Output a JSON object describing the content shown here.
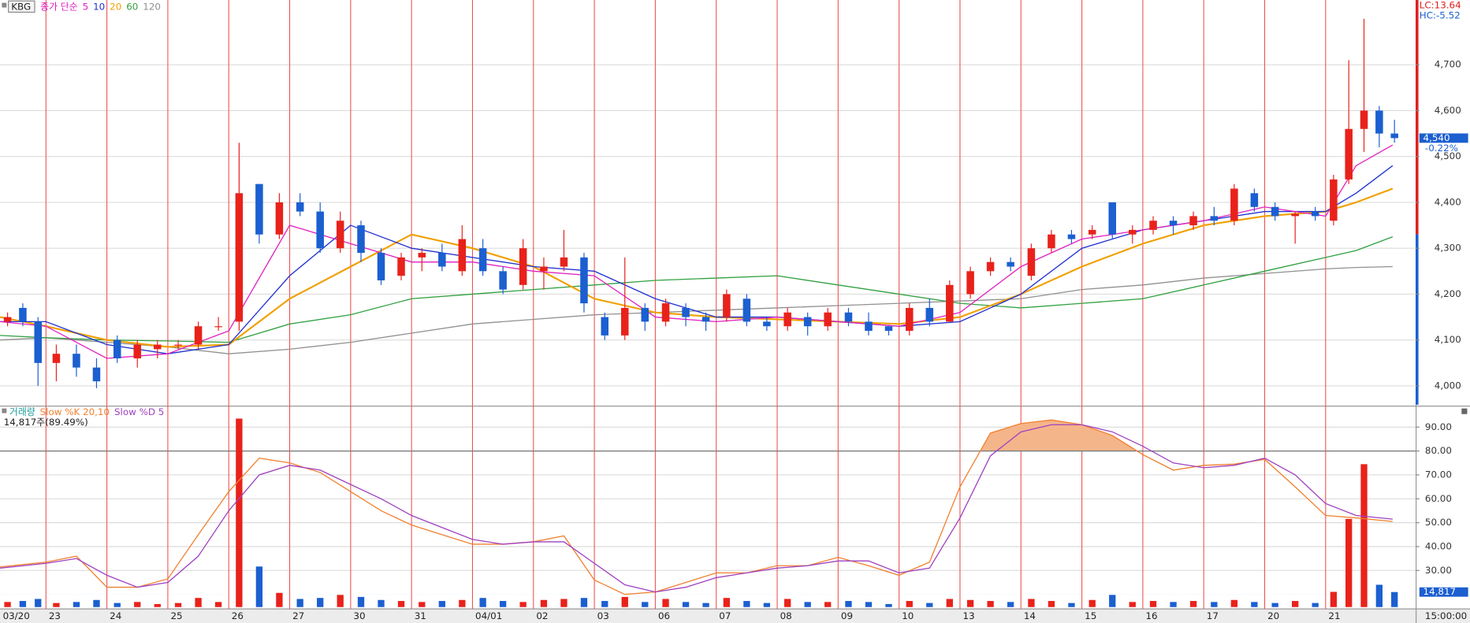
{
  "chart_data": {
    "type": "candlestick",
    "symbol": "KBG",
    "ma_label": "종가 단순",
    "xlim": [
      -0.754,
      22.477
    ],
    "xticks": [
      {
        "value": -0.754,
        "label": "03/20"
      },
      {
        "value": 0,
        "label": "23"
      },
      {
        "value": 1,
        "label": "24"
      },
      {
        "value": 2,
        "label": "25"
      },
      {
        "value": 3,
        "label": "26"
      },
      {
        "value": 4,
        "label": "27"
      },
      {
        "value": 5,
        "label": "30"
      },
      {
        "value": 6,
        "label": "31"
      },
      {
        "value": 7,
        "label": "04/01"
      },
      {
        "value": 8,
        "label": "02"
      },
      {
        "value": 9,
        "label": "03"
      },
      {
        "value": 10,
        "label": "06"
      },
      {
        "value": 11,
        "label": "07"
      },
      {
        "value": 12,
        "label": "08"
      },
      {
        "value": 13,
        "label": "09"
      },
      {
        "value": 14,
        "label": "10"
      },
      {
        "value": 15,
        "label": "13"
      },
      {
        "value": 16,
        "label": "14"
      },
      {
        "value": 17,
        "label": "15"
      },
      {
        "value": 18,
        "label": "16"
      },
      {
        "value": 19,
        "label": "17"
      },
      {
        "value": 20,
        "label": "20"
      },
      {
        "value": 21,
        "label": "21"
      }
    ],
    "time_label": "15:00:00",
    "ylim": [
      3959,
      4841
    ],
    "yticks": [
      {
        "value": 4700,
        "label": "4,700"
      },
      {
        "value": 4600,
        "label": "4,600"
      },
      {
        "value": 4500,
        "label": "4,500"
      },
      {
        "value": 4400,
        "label": "4,400"
      },
      {
        "value": 4300,
        "label": "4,300"
      },
      {
        "value": 4200,
        "label": "4,200"
      },
      {
        "value": 4100,
        "label": "4,100"
      },
      {
        "value": 4000,
        "label": "4,000"
      }
    ],
    "grid": true,
    "up_color": "#e8221b",
    "down_color": "#1b5fd0",
    "candles": {
      "x": [
        -0.63,
        -0.38,
        -0.13,
        0.17,
        0.5,
        0.83,
        1.17,
        1.5,
        1.83,
        2.17,
        2.5,
        2.83,
        3.17,
        3.5,
        3.83,
        4.17,
        4.5,
        4.83,
        5.17,
        5.5,
        5.83,
        6.17,
        6.5,
        6.83,
        7.17,
        7.5,
        7.83,
        8.17,
        8.5,
        8.83,
        9.17,
        9.5,
        9.83,
        10.17,
        10.5,
        10.83,
        11.17,
        11.5,
        11.83,
        12.17,
        12.5,
        12.83,
        13.17,
        13.5,
        13.83,
        14.17,
        14.5,
        14.83,
        15.17,
        15.5,
        15.83,
        16.17,
        16.5,
        16.83,
        17.17,
        17.5,
        17.83,
        18.17,
        18.5,
        18.83,
        19.17,
        19.5,
        19.83,
        20.17,
        20.5,
        20.83,
        21.13,
        21.38,
        21.63,
        21.88,
        22.13
      ],
      "open": [
        4140,
        4170,
        4140,
        4050,
        4070,
        4040,
        4100,
        4060,
        4080,
        4090,
        4090,
        4130,
        4140,
        4440,
        4330,
        4400,
        4380,
        4300,
        4350,
        4290,
        4240,
        4280,
        4290,
        4250,
        4300,
        4250,
        4220,
        4250,
        4260,
        4280,
        4150,
        4110,
        4170,
        4140,
        4170,
        4150,
        4150,
        4190,
        4140,
        4130,
        4150,
        4130,
        4160,
        4140,
        4130,
        4120,
        4170,
        4140,
        4200,
        4250,
        4270,
        4240,
        4300,
        4330,
        4330,
        4400,
        4330,
        4340,
        4360,
        4350,
        4370,
        4360,
        4420,
        4390,
        4370,
        4380,
        4360,
        4450,
        4560,
        4600,
        4550
      ],
      "high": [
        4160,
        4180,
        4150,
        4090,
        4090,
        4060,
        4110,
        4100,
        4100,
        4100,
        4140,
        4150,
        4530,
        4440,
        4420,
        4420,
        4400,
        4380,
        4360,
        4300,
        4290,
        4300,
        4310,
        4350,
        4320,
        4260,
        4320,
        4280,
        4340,
        4290,
        4160,
        4280,
        4180,
        4190,
        4180,
        4160,
        4210,
        4200,
        4150,
        4170,
        4160,
        4170,
        4170,
        4160,
        4130,
        4180,
        4190,
        4230,
        4260,
        4280,
        4280,
        4310,
        4340,
        4340,
        4350,
        4400,
        4350,
        4370,
        4370,
        4380,
        4390,
        4440,
        4430,
        4400,
        4380,
        4390,
        4460,
        4710,
        4800,
        4610,
        4580
      ],
      "low": [
        4130,
        4130,
        4000,
        4010,
        4020,
        3995,
        4050,
        4040,
        4060,
        4080,
        4080,
        4120,
        4120,
        4310,
        4320,
        4370,
        4290,
        4290,
        4270,
        4220,
        4230,
        4250,
        4250,
        4240,
        4240,
        4200,
        4210,
        4210,
        4250,
        4160,
        4100,
        4100,
        4120,
        4130,
        4130,
        4120,
        4140,
        4130,
        4120,
        4120,
        4110,
        4120,
        4130,
        4110,
        4110,
        4110,
        4130,
        4140,
        4190,
        4240,
        4250,
        4230,
        4290,
        4310,
        4320,
        4320,
        4310,
        4330,
        4330,
        4340,
        4350,
        4350,
        4380,
        4360,
        4310,
        4360,
        4350,
        4440,
        4510,
        4520,
        4530
      ],
      "close": [
        4150,
        4140,
        4050,
        4070,
        4040,
        4010,
        4060,
        4090,
        4090,
        4090,
        4130,
        4130,
        4420,
        4330,
        4400,
        4380,
        4300,
        4360,
        4290,
        4230,
        4280,
        4290,
        4260,
        4320,
        4250,
        4210,
        4300,
        4260,
        4280,
        4180,
        4110,
        4170,
        4140,
        4180,
        4150,
        4140,
        4200,
        4140,
        4130,
        4160,
        4130,
        4160,
        4140,
        4120,
        4120,
        4170,
        4140,
        4220,
        4250,
        4270,
        4260,
        4300,
        4330,
        4320,
        4340,
        4330,
        4340,
        4360,
        4350,
        4370,
        4360,
        4430,
        4390,
        4370,
        4375,
        4370,
        4450,
        4560,
        4600,
        4550,
        4540
      ]
    },
    "ma_series": [
      {
        "name": "5",
        "color": "#e020c0",
        "x": [
          -0.754,
          0,
          1,
          2,
          3,
          4,
          5,
          6,
          7,
          8,
          9,
          10,
          11,
          12,
          13,
          14,
          15,
          16,
          17,
          18,
          19,
          20,
          21,
          21.5,
          22.1
        ],
        "values": [
          4140,
          4130,
          4060,
          4070,
          4120,
          4350,
          4310,
          4270,
          4270,
          4250,
          4240,
          4150,
          4140,
          4150,
          4140,
          4130,
          4160,
          4260,
          4320,
          4340,
          4360,
          4390,
          4370,
          4480,
          4525
        ]
      },
      {
        "name": "10",
        "color": "#2030d0",
        "x": [
          -0.754,
          0,
          1,
          2,
          3,
          4,
          5,
          6,
          7,
          8,
          9,
          10,
          11,
          12,
          13,
          14,
          15,
          16,
          17,
          18,
          19,
          20,
          21,
          21.5,
          22.1
        ],
        "values": [
          4140,
          4140,
          4090,
          4070,
          4090,
          4240,
          4350,
          4300,
          4280,
          4260,
          4250,
          4190,
          4150,
          4150,
          4140,
          4130,
          4140,
          4200,
          4300,
          4340,
          4360,
          4380,
          4380,
          4420,
          4480
        ]
      },
      {
        "name": "20",
        "color": "#f0a000",
        "x": [
          -0.754,
          0,
          1,
          2,
          3,
          4,
          5,
          6,
          7,
          8,
          9,
          10,
          11,
          12,
          13,
          14,
          15,
          16,
          17,
          18,
          19,
          20,
          21,
          21.5,
          22.1
        ],
        "values": [
          4150,
          4130,
          4100,
          4085,
          4090,
          4190,
          4260,
          4330,
          4300,
          4260,
          4190,
          4160,
          4150,
          4145,
          4140,
          4135,
          4150,
          4200,
          4260,
          4310,
          4350,
          4370,
          4380,
          4400,
          4430
        ]
      },
      {
        "name": "60",
        "color": "#30a040",
        "x": [
          -0.754,
          0,
          1,
          2,
          3,
          4,
          5,
          6,
          7,
          8,
          9,
          10,
          11,
          12,
          13,
          14,
          15,
          16,
          17,
          18,
          19,
          20,
          21,
          21.5,
          22.1
        ],
        "values": [
          4110,
          4105,
          4100,
          4098,
          4095,
          4135,
          4155,
          4190,
          4200,
          4210,
          4220,
          4230,
          4235,
          4240,
          4220,
          4200,
          4180,
          4170,
          4180,
          4190,
          4220,
          4250,
          4280,
          4295,
          4325
        ]
      },
      {
        "name": "120",
        "color": "#909090",
        "x": [
          -0.754,
          0,
          1,
          2,
          3,
          4,
          5,
          6,
          7,
          8,
          9,
          10,
          11,
          12,
          13,
          14,
          15,
          16,
          17,
          18,
          19,
          20,
          21,
          21.5,
          22.1
        ],
        "values": [
          4100,
          4105,
          4095,
          4085,
          4070,
          4080,
          4095,
          4115,
          4135,
          4145,
          4155,
          4160,
          4165,
          4170,
          4175,
          4180,
          4185,
          4190,
          4210,
          4220,
          4235,
          4245,
          4255,
          4258,
          4260
        ]
      }
    ],
    "last_price": {
      "value": 4540,
      "label": "4,540"
    },
    "change_label": "-0.22%",
    "lc_label": "LC:13.64",
    "hc_label": "HC:-5.52",
    "volume": {
      "name": "거래량",
      "color": "#1a9a9a",
      "values": [
        5000,
        6000,
        8000,
        4000,
        5000,
        7000,
        4000,
        5000,
        3000,
        4000,
        9000,
        5000,
        186000,
        40000,
        14000,
        8000,
        9000,
        12000,
        10000,
        7000,
        6000,
        5000,
        6000,
        7000,
        9000,
        6000,
        5000,
        7000,
        8000,
        9000,
        6000,
        10000,
        5000,
        8000,
        5000,
        4000,
        9000,
        6000,
        4000,
        8000,
        5000,
        5000,
        6000,
        5000,
        3000,
        6000,
        4000,
        8000,
        7000,
        6000,
        5000,
        8000,
        6000,
        4000,
        7000,
        12000,
        5000,
        6000,
        5000,
        6000,
        5000,
        7000,
        5000,
        4000,
        6000,
        4000,
        15000,
        87000,
        141000,
        22000,
        14817
      ]
    },
    "vlim": [
      0,
      196000
    ],
    "volume_info": "14,817주(89.49%)",
    "last_volume": {
      "value": 14817,
      "label": "14,817"
    },
    "stoch_x": [
      -0.754,
      0,
      0.5,
      1,
      1.5,
      2,
      2.5,
      3,
      3.5,
      4,
      4.5,
      5,
      5.5,
      6,
      6.5,
      7,
      7.5,
      8,
      8.5,
      9,
      9.5,
      10,
      10.5,
      11,
      11.5,
      12,
      12.5,
      13,
      13.5,
      14,
      14.5,
      15,
      15.5,
      16,
      16.5,
      17,
      17.5,
      18,
      18.5,
      19,
      19.5,
      20,
      20.5,
      21,
      21.5,
      22.1
    ],
    "stoch_series": [
      {
        "name": "Slow %K 20,10",
        "color": "#f08030",
        "values": [
          31.5,
          33.5,
          36,
          23,
          23,
          26.5,
          45,
          63,
          77,
          75,
          71,
          63,
          55,
          49,
          45,
          41,
          41,
          42,
          44.5,
          26,
          20,
          21,
          25,
          29,
          29,
          32,
          32,
          35.5,
          32,
          28,
          33.5,
          65,
          87.5,
          91.5,
          93,
          91,
          86.5,
          78.5,
          72,
          74,
          74.5,
          76.5,
          65,
          53,
          52,
          50.5
        ]
      },
      {
        "name": "Slow %D 5",
        "color": "#a040c0",
        "values": [
          31,
          33,
          35,
          28,
          23,
          25,
          36,
          55,
          70,
          74,
          72,
          66,
          60,
          53,
          48,
          43,
          41,
          42,
          42,
          33,
          24,
          21,
          23,
          27,
          29,
          31,
          32,
          34,
          34,
          29,
          31,
          52,
          78,
          88,
          91,
          91,
          88,
          82,
          75,
          73,
          74,
          77,
          70,
          58,
          53,
          51.5
        ]
      }
    ],
    "stoch_ylim": [
      14.7,
      97.8
    ],
    "stoch_yticks": [
      {
        "value": 90,
        "label": "90.00"
      },
      {
        "value": 80,
        "label": "80.00"
      },
      {
        "value": 70,
        "label": "70.00"
      },
      {
        "value": 60,
        "label": "60.00"
      },
      {
        "value": 50,
        "label": "50.00"
      },
      {
        "value": 40,
        "label": "40.00"
      },
      {
        "value": 30,
        "label": "30.00"
      }
    ],
    "stoch_levels": [
      80,
      20
    ]
  }
}
